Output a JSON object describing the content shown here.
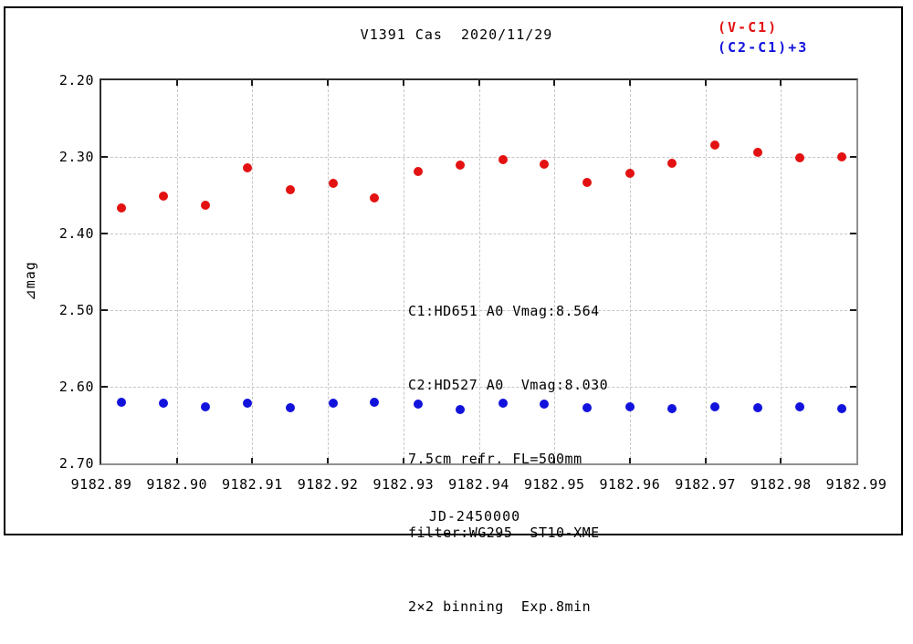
{
  "title": "V1391 Cas  2020/11/29",
  "legend": [
    {
      "label": "(V-C1)",
      "color": "#e31111"
    },
    {
      "label": "(C2-C1)+3",
      "color": "#1212dd"
    }
  ],
  "annotation": {
    "lines": [
      "C1:HD651 A0 Vmag:8.564",
      "C2:HD527 A0  Vmag:8.030",
      "7.5cm refr. FL=500mm",
      "filter:WG295  ST10-XME",
      "2×2 binning  Exp.8min"
    ]
  },
  "chart_data": {
    "type": "scatter",
    "title": "V1391 Cas  2020/11/29",
    "xlabel": "JD-2450000",
    "ylabel": "⊿mag",
    "xlim": [
      9182.89,
      9182.99
    ],
    "ylim": [
      2.2,
      2.7
    ],
    "y_inverted": true,
    "grid": "dashed",
    "legend_position": "top-right",
    "x_ticks": {
      "values": [
        9182.89,
        9182.9,
        9182.91,
        9182.92,
        9182.93,
        9182.94,
        9182.95,
        9182.96,
        9182.97,
        9182.98,
        9182.99
      ],
      "labels": [
        "9182.89",
        "9182.90",
        "9182.91",
        "9182.92",
        "9182.93",
        "9182.94",
        "9182.95",
        "9182.96",
        "9182.97",
        "9182.98",
        "9182.99"
      ]
    },
    "y_ticks": {
      "values": [
        2.2,
        2.3,
        2.4,
        2.5,
        2.6,
        2.7
      ],
      "labels": [
        "2.20",
        "2.30",
        "2.40",
        "2.50",
        "2.60",
        "2.70"
      ]
    },
    "x_shared": [
      9182.8926,
      9182.8982,
      9182.9038,
      9182.9094,
      9182.915,
      9182.9207,
      9182.9262,
      9182.932,
      9182.9375,
      9182.9432,
      9182.9487,
      9182.9543,
      9182.96,
      9182.9656,
      9182.9713,
      9182.9769,
      9182.9825,
      9182.9881
    ],
    "series": [
      {
        "name": "(V-C1)",
        "color": "#e31111",
        "values": [
          2.367,
          2.351,
          2.363,
          2.314,
          2.343,
          2.334,
          2.353,
          2.319,
          2.311,
          2.304,
          2.31,
          2.333,
          2.321,
          2.308,
          2.284,
          2.294,
          2.301,
          2.3
        ]
      },
      {
        "name": "(C2-C1)+3",
        "color": "#1212dd",
        "values": [
          2.62,
          2.622,
          2.626,
          2.622,
          2.627,
          2.622,
          2.62,
          2.623,
          2.63,
          2.622,
          2.623,
          2.627,
          2.626,
          2.628,
          2.626,
          2.627,
          2.626,
          2.629
        ]
      }
    ]
  }
}
